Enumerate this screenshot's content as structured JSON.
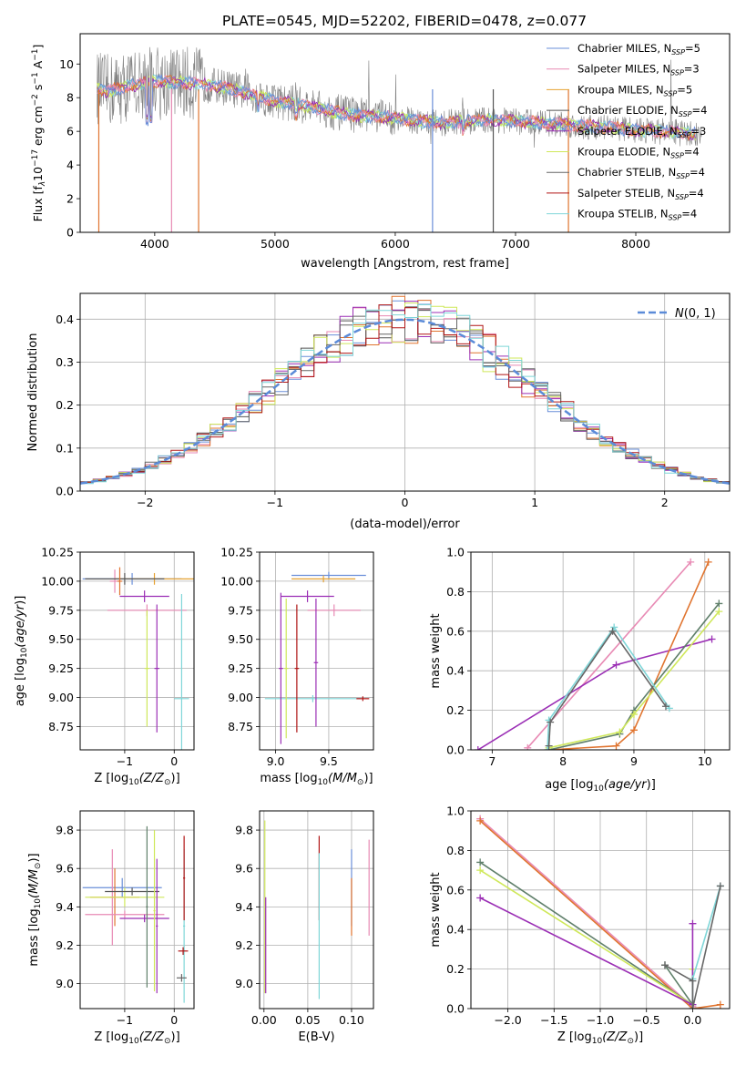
{
  "figure_title": "PLATE=0545, MJD=52202, FIBERID=0478, z=0.077",
  "colors": {
    "models": [
      "#6a8fd9",
      "#e88ab4",
      "#e6a232",
      "#555555",
      "#9b2fb5",
      "#cfe85a",
      "#666666",
      "#b01515",
      "#7fd6d8"
    ],
    "spectrum": "#7f7f7f",
    "gauss": "#5b8bd8",
    "extra": [
      "#e0742f",
      "#5f7f6a"
    ]
  },
  "chart_data": [
    {
      "id": "spectrum",
      "type": "line",
      "xlabel": "wavelength [Angstrom, rest frame]",
      "ylabel": "Flux [f",
      "ylim": [
        0,
        11.8
      ],
      "xlim": [
        3380,
        8780
      ],
      "xticks": [
        4000,
        5000,
        6000,
        7000,
        8000
      ],
      "yticks": [
        0,
        2,
        4,
        6,
        8,
        10
      ],
      "grid": false,
      "legend_position": "top-right",
      "legend": [
        {
          "label": "Chabrier MILES, N",
          "n": "5"
        },
        {
          "label": "Salpeter MILES, N",
          "n": "3"
        },
        {
          "label": "Kroupa MILES, N",
          "n": "5"
        },
        {
          "label": "Chabrier ELODIE, N",
          "n": "4"
        },
        {
          "label": "Salpeter ELODIE, N",
          "n": "3"
        },
        {
          "label": "Kroupa ELODIE, N",
          "n": "4"
        },
        {
          "label": "Chabrier STELIB, N",
          "n": "4"
        },
        {
          "label": "Salpeter STELIB, N",
          "n": "4"
        },
        {
          "label": "Kroupa STELIB, N",
          "n": "4"
        }
      ],
      "continuum": {
        "x": [
          3520,
          3600,
          3800,
          4000,
          4200,
          4400,
          4600,
          4800,
          5000,
          5200,
          5400,
          5600,
          5800,
          6000,
          6200,
          6400,
          6600,
          6800,
          7000,
          7200,
          7400,
          7600,
          7800,
          8000,
          8200,
          8400,
          8550
        ],
        "y": [
          8.6,
          8.4,
          8.7,
          9.0,
          8.9,
          8.8,
          8.6,
          8.2,
          7.8,
          7.6,
          7.3,
          7.0,
          6.9,
          6.8,
          6.6,
          6.5,
          6.6,
          6.7,
          6.6,
          6.5,
          6.4,
          6.3,
          6.2,
          6.1,
          6.0,
          5.9,
          5.8
        ]
      }
    },
    {
      "id": "residuals",
      "type": "line",
      "xlabel": "(data-model)/error",
      "ylabel": "Normed distribution",
      "xlim": [
        -2.5,
        2.5
      ],
      "ylim": [
        0,
        0.46
      ],
      "xticks": [
        -2,
        -1,
        0,
        1,
        2
      ],
      "yticks": [
        0.0,
        0.1,
        0.2,
        0.3,
        0.4
      ],
      "grid": true,
      "legend_position": "top-right",
      "legend": [
        {
          "label": "N(0,1)"
        }
      ]
    },
    {
      "id": "age-vs-Z",
      "type": "scatter",
      "xlabel": "Z [log10(Z/Z⊙)]",
      "ylabel": "age  [log10(age/yr)]",
      "xlim": [
        -1.9,
        0.4
      ],
      "ylim": [
        8.55,
        10.25
      ],
      "xticks": [
        -1,
        0
      ],
      "yticks": [
        8.75,
        9.0,
        9.25,
        9.5,
        9.75,
        10.0,
        10.25
      ],
      "grid": true,
      "points": [
        {
          "x": -0.85,
          "y": 10.02,
          "ex": 1.0,
          "ey": 0.05,
          "c": 0
        },
        {
          "x": -1.2,
          "y": 10.0,
          "ex": 0.1,
          "ey": 0.1,
          "c": 1
        },
        {
          "x": -0.4,
          "y": 10.02,
          "ex": 0.8,
          "ey": 0.05,
          "c": 2
        },
        {
          "x": -1.0,
          "y": 10.02,
          "ex": 0.8,
          "ey": 0.05,
          "c": 3
        },
        {
          "x": -0.6,
          "y": 9.87,
          "ex": 0.5,
          "ey": 0.05,
          "c": 4
        },
        {
          "x": -0.55,
          "y": 9.75,
          "ex": 0.8,
          "ey": 0.05,
          "c": 1
        },
        {
          "x": 0.15,
          "y": 8.99,
          "ex": 0.15,
          "ey": 0.9,
          "c": 8
        },
        {
          "x": -0.55,
          "y": 9.25,
          "ex": 0.05,
          "ey": 0.5,
          "c": 5
        },
        {
          "x": -0.35,
          "y": 9.25,
          "ex": 0.05,
          "ey": 0.55,
          "c": 4
        },
        {
          "x": -1.1,
          "y": 10.0,
          "ex": 0.05,
          "ey": 0.12,
          "c": 9
        }
      ]
    },
    {
      "id": "age-vs-mass",
      "type": "scatter",
      "xlabel": "mass [log10(M/M⊙)]",
      "ylabel": "",
      "xlim": [
        8.85,
        9.92
      ],
      "ylim": [
        8.55,
        10.25
      ],
      "xticks": [
        9.0,
        9.5
      ],
      "yticks": [
        8.75,
        9.0,
        9.25,
        9.5,
        9.75,
        10.0,
        10.25
      ],
      "grid": true,
      "points": [
        {
          "x": 9.5,
          "y": 10.05,
          "ex": 0.35,
          "ey": 0.03,
          "c": 0
        },
        {
          "x": 9.45,
          "y": 10.02,
          "ex": 0.3,
          "ey": 0.03,
          "c": 2
        },
        {
          "x": 9.55,
          "y": 9.75,
          "ex": 0.25,
          "ey": 0.05,
          "c": 1
        },
        {
          "x": 9.3,
          "y": 9.87,
          "ex": 0.25,
          "ey": 0.05,
          "c": 4
        },
        {
          "x": 9.35,
          "y": 8.99,
          "ex": 0.45,
          "ey": 0.03,
          "c": 8
        },
        {
          "x": 9.05,
          "y": 9.25,
          "ex": 0.02,
          "ey": 0.65,
          "c": 4
        },
        {
          "x": 9.1,
          "y": 9.25,
          "ex": 0.02,
          "ey": 0.6,
          "c": 5
        },
        {
          "x": 9.2,
          "y": 9.25,
          "ex": 0.02,
          "ey": 0.55,
          "c": 7
        },
        {
          "x": 9.38,
          "y": 9.3,
          "ex": 0.02,
          "ey": 0.55,
          "c": 4
        },
        {
          "x": 9.82,
          "y": 8.99,
          "ex": 0.06,
          "ey": 0.02,
          "c": 7
        }
      ]
    },
    {
      "id": "weight-vs-age",
      "type": "line",
      "xlabel": "age  [log10(age/yr)]",
      "ylabel": "mass weight",
      "xlim": [
        6.7,
        10.35
      ],
      "ylim": [
        0,
        1.0
      ],
      "xticks": [
        7,
        8,
        9,
        10
      ],
      "yticks": [
        0.0,
        0.2,
        0.4,
        0.6,
        0.8,
        1.0
      ],
      "grid": true,
      "series": [
        {
          "c": 1,
          "x": [
            7.5,
            9.8
          ],
          "y": [
            0.01,
            0.95
          ]
        },
        {
          "c": 4,
          "x": [
            6.8,
            8.75,
            10.1
          ],
          "y": [
            0.0,
            0.43,
            0.56
          ]
        },
        {
          "c": 9,
          "x": [
            7.8,
            8.75,
            9.0,
            10.05
          ],
          "y": [
            0.0,
            0.02,
            0.1,
            0.95
          ]
        },
        {
          "c": 10,
          "x": [
            7.8,
            8.8,
            9.0,
            10.2
          ],
          "y": [
            0.0,
            0.08,
            0.2,
            0.74
          ]
        },
        {
          "c": 5,
          "x": [
            7.8,
            8.8,
            9.0,
            10.2
          ],
          "y": [
            0.01,
            0.09,
            0.18,
            0.7
          ]
        },
        {
          "c": 8,
          "x": [
            7.78,
            7.8,
            8.72,
            9.5
          ],
          "y": [
            0.0,
            0.15,
            0.62,
            0.21
          ]
        },
        {
          "c": 6,
          "x": [
            7.8,
            7.82,
            8.7,
            9.45
          ],
          "y": [
            0.02,
            0.14,
            0.6,
            0.22
          ]
        }
      ]
    },
    {
      "id": "mass-vs-Z",
      "type": "scatter",
      "xlabel": "Z [log10(Z/Z⊙)]",
      "ylabel": "mass [log10(M/M⊙)]",
      "xlim": [
        -1.9,
        0.4
      ],
      "ylim": [
        8.87,
        9.9
      ],
      "xticks": [
        -1,
        0
      ],
      "yticks": [
        9.0,
        9.2,
        9.4,
        9.6,
        9.8
      ],
      "grid": true,
      "points": [
        {
          "x": -1.05,
          "y": 9.5,
          "ex": 0.8,
          "ey": 0.05,
          "c": 0
        },
        {
          "x": -1.25,
          "y": 9.45,
          "ex": 0.05,
          "ey": 0.25,
          "c": 1
        },
        {
          "x": -1.2,
          "y": 9.45,
          "ex": 0.5,
          "ey": 0.15,
          "c": 9
        },
        {
          "x": -1.0,
          "y": 9.45,
          "ex": 0.8,
          "ey": 0.05,
          "c": 5
        },
        {
          "x": -0.85,
          "y": 9.48,
          "ex": 0.55,
          "ey": 0.02,
          "c": 3
        },
        {
          "x": -1.0,
          "y": 9.36,
          "ex": 0.8,
          "ey": 0.02,
          "c": 1
        },
        {
          "x": -0.6,
          "y": 9.34,
          "ex": 0.5,
          "ey": 0.02,
          "c": 4
        },
        {
          "x": -0.55,
          "y": 9.4,
          "ex": 0.02,
          "ey": 0.42,
          "c": 10
        },
        {
          "x": -0.4,
          "y": 9.38,
          "ex": 0.02,
          "ey": 0.42,
          "c": 5
        },
        {
          "x": -0.35,
          "y": 9.3,
          "ex": 0.02,
          "ey": 0.35,
          "c": 4
        },
        {
          "x": 0.2,
          "y": 9.3,
          "ex": 0.02,
          "ey": 0.4,
          "c": 8
        },
        {
          "x": 0.18,
          "y": 9.17,
          "ex": 0.1,
          "ey": 0.02,
          "c": 7
        },
        {
          "x": 0.15,
          "y": 9.03,
          "ex": 0.1,
          "ey": 0.02,
          "c": 6
        },
        {
          "x": 0.2,
          "y": 9.55,
          "ex": 0.02,
          "ey": 0.22,
          "c": 7
        }
      ]
    },
    {
      "id": "mass-vs-EBV",
      "type": "scatter",
      "xlabel": "E(B-V)",
      "ylabel": "",
      "xlim": [
        -0.005,
        0.125
      ],
      "ylim": [
        8.87,
        9.9
      ],
      "xticks": [
        0.0,
        0.05,
        0.1
      ],
      "yticks": [
        9.0,
        9.2,
        9.4,
        9.6,
        9.8
      ],
      "grid": true,
      "points": [
        {
          "x": 0.001,
          "y": 9.4,
          "ex": 0.0,
          "ey": 0.45,
          "c": 5
        },
        {
          "x": 0.002,
          "y": 9.2,
          "ex": 0.0,
          "ey": 0.25,
          "c": 4
        },
        {
          "x": 0.063,
          "y": 9.55,
          "ex": 0.0,
          "ey": 0.22,
          "c": 7
        },
        {
          "x": 0.063,
          "y": 9.3,
          "ex": 0.0,
          "ey": 0.38,
          "c": 8
        },
        {
          "x": 0.1,
          "y": 9.5,
          "ex": 0.0,
          "ey": 0.2,
          "c": 0
        },
        {
          "x": 0.1,
          "y": 9.4,
          "ex": 0.0,
          "ey": 0.15,
          "c": 9
        },
        {
          "x": 0.12,
          "y": 9.5,
          "ex": 0.0,
          "ey": 0.25,
          "c": 1
        }
      ]
    },
    {
      "id": "weight-vs-Z",
      "type": "line",
      "xlabel": "Z [log10(Z/Z⊙)]",
      "ylabel": "mass weight",
      "xlim": [
        -2.4,
        0.4
      ],
      "ylim": [
        0,
        1.0
      ],
      "xticks": [
        -2.0,
        -1.5,
        -1.0,
        -0.5,
        0.0
      ],
      "yticks": [
        0.0,
        0.2,
        0.4,
        0.6,
        0.8,
        1.0
      ],
      "grid": true,
      "series": [
        {
          "c": 1,
          "x": [
            -2.3,
            0.0
          ],
          "y": [
            0.96,
            0.01
          ]
        },
        {
          "c": 9,
          "x": [
            -2.3,
            0.0,
            0.3
          ],
          "y": [
            0.95,
            0.0,
            0.02
          ]
        },
        {
          "c": 10,
          "x": [
            -2.3,
            0.0,
            -0.3
          ],
          "y": [
            0.74,
            0.02,
            0.22
          ]
        },
        {
          "c": 5,
          "x": [
            -2.3,
            0.0,
            0.0
          ],
          "y": [
            0.7,
            0.02,
            0.2
          ]
        },
        {
          "c": 4,
          "x": [
            -2.3,
            0.0,
            0.0
          ],
          "y": [
            0.56,
            0.02,
            0.43
          ]
        },
        {
          "c": 8,
          "x": [
            0.0,
            0.0,
            0.3
          ],
          "y": [
            0.0,
            0.15,
            0.62
          ]
        },
        {
          "c": 6,
          "x": [
            -0.3,
            0.0,
            0.0,
            0.3
          ],
          "y": [
            0.22,
            0.14,
            0.0,
            0.62
          ]
        }
      ]
    }
  ]
}
